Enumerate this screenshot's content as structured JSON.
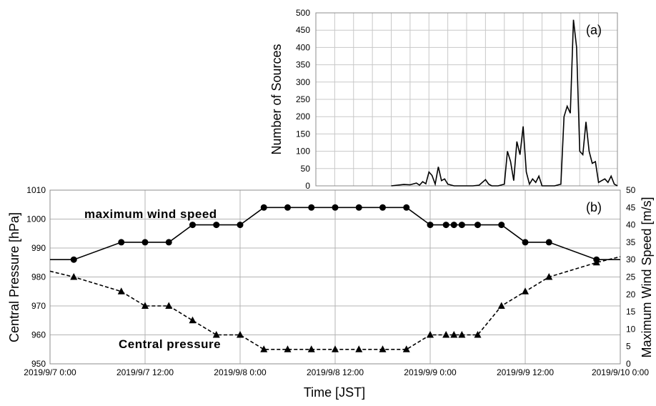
{
  "chart_data": [
    {
      "type": "line",
      "panel_label": "(a)",
      "ylabel": "Number of Sources",
      "ylim": [
        0,
        500
      ],
      "yticks": [
        "0",
        "50",
        "100",
        "150",
        "200",
        "250",
        "300",
        "350",
        "400",
        "450",
        "500"
      ],
      "x_range": [
        "2019/9/7 12:00",
        "2019/9/9 12:00"
      ],
      "grid": true,
      "series": [
        {
          "values": [
            [
              "2019/9/8 0:00",
              0
            ],
            [
              "2019/9/8 1:00",
              2
            ],
            [
              "2019/9/8 2:00",
              4
            ],
            [
              "2019/9/8 3:00",
              3
            ],
            [
              "2019/9/8 4:00",
              8
            ],
            [
              "2019/9/8 4:30",
              2
            ],
            [
              "2019/9/8 5:00",
              12
            ],
            [
              "2019/9/8 5:30",
              6
            ],
            [
              "2019/9/8 6:00",
              40
            ],
            [
              "2019/9/8 6:30",
              30
            ],
            [
              "2019/9/8 7:00",
              5
            ],
            [
              "2019/9/8 7:30",
              55
            ],
            [
              "2019/9/8 8:00",
              15
            ],
            [
              "2019/9/8 8:30",
              20
            ],
            [
              "2019/9/8 9:00",
              5
            ],
            [
              "2019/9/8 10:00",
              0
            ],
            [
              "2019/9/8 11:00",
              0
            ],
            [
              "2019/9/8 12:00",
              0
            ],
            [
              "2019/9/8 13:00",
              0
            ],
            [
              "2019/9/8 14:00",
              2
            ],
            [
              "2019/9/8 15:00",
              18
            ],
            [
              "2019/9/8 15:30",
              5
            ],
            [
              "2019/9/8 16:00",
              0
            ],
            [
              "2019/9/8 17:00",
              0
            ],
            [
              "2019/9/8 18:00",
              5
            ],
            [
              "2019/9/8 18:30",
              100
            ],
            [
              "2019/9/8 19:00",
              70
            ],
            [
              "2019/9/8 19:30",
              15
            ],
            [
              "2019/9/8 20:00",
              128
            ],
            [
              "2019/9/8 20:30",
              90
            ],
            [
              "2019/9/8 21:00",
              172
            ],
            [
              "2019/9/8 21:30",
              40
            ],
            [
              "2019/9/8 22:00",
              5
            ],
            [
              "2019/9/8 22:30",
              20
            ],
            [
              "2019/9/8 23:00",
              10
            ],
            [
              "2019/9/8 23:30",
              28
            ],
            [
              "2019/9/9 0:00",
              0
            ],
            [
              "2019/9/9 1:00",
              0
            ],
            [
              "2019/9/9 2:00",
              0
            ],
            [
              "2019/9/9 3:00",
              5
            ],
            [
              "2019/9/9 3:30",
              200
            ],
            [
              "2019/9/9 4:00",
              230
            ],
            [
              "2019/9/9 4:30",
              210
            ],
            [
              "2019/9/9 5:00",
              480
            ],
            [
              "2019/9/9 5:30",
              400
            ],
            [
              "2019/9/9 6:00",
              100
            ],
            [
              "2019/9/9 6:30",
              90
            ],
            [
              "2019/9/9 7:00",
              185
            ],
            [
              "2019/9/9 7:30",
              100
            ],
            [
              "2019/9/9 8:00",
              65
            ],
            [
              "2019/9/9 8:30",
              70
            ],
            [
              "2019/9/9 9:00",
              10
            ],
            [
              "2019/9/9 9:30",
              15
            ],
            [
              "2019/9/9 10:00",
              20
            ],
            [
              "2019/9/9 10:30",
              10
            ],
            [
              "2019/9/9 11:00",
              28
            ],
            [
              "2019/9/9 11:30",
              5
            ],
            [
              "2019/9/9 12:00",
              0
            ]
          ]
        }
      ]
    },
    {
      "type": "line",
      "panel_label": "(b)",
      "xlabel": "Time [JST]",
      "ylabel_left": "Central Pressure [hPa]",
      "ylabel_right": "Maximum Wind Speed [m/s]",
      "ylim_left": [
        950,
        1010
      ],
      "ylim_right": [
        0,
        50
      ],
      "yticks_left": [
        "950",
        "960",
        "970",
        "980",
        "990",
        "1000",
        "1010"
      ],
      "yticks_right": [
        "0",
        "5",
        "10",
        "15",
        "20",
        "25",
        "30",
        "35",
        "40",
        "45",
        "50"
      ],
      "x_range": [
        "2019/9/7 0:00",
        "2019/9/10 0:00"
      ],
      "xticks": [
        "2019/9/7 0:00",
        "2019/9/7 12:00",
        "2019/9/8 0:00",
        "2019/9/8 12:00",
        "2019/9/9 0:00",
        "2019/9/9 12:00",
        "2019/9/10 0:00"
      ],
      "grid": true,
      "annotations": [
        "maximum wind speed",
        "Central pressure"
      ],
      "series": [
        {
          "name": "maximum wind speed",
          "axis": "right",
          "values": [
            [
              "2019/9/6 21:00",
              30
            ],
            [
              "2019/9/7 3:00",
              30
            ],
            [
              "2019/9/7 9:00",
              35
            ],
            [
              "2019/9/7 12:00",
              35
            ],
            [
              "2019/9/7 15:00",
              35
            ],
            [
              "2019/9/7 18:00",
              40
            ],
            [
              "2019/9/7 21:00",
              40
            ],
            [
              "2019/9/8 0:00",
              40
            ],
            [
              "2019/9/8 3:00",
              45
            ],
            [
              "2019/9/8 6:00",
              45
            ],
            [
              "2019/9/8 9:00",
              45
            ],
            [
              "2019/9/8 12:00",
              45
            ],
            [
              "2019/9/8 15:00",
              45
            ],
            [
              "2019/9/8 18:00",
              45
            ],
            [
              "2019/9/8 21:00",
              45
            ],
            [
              "2019/9/9 0:00",
              40
            ],
            [
              "2019/9/9 2:00",
              40
            ],
            [
              "2019/9/9 3:00",
              40
            ],
            [
              "2019/9/9 4:00",
              40
            ],
            [
              "2019/9/9 6:00",
              40
            ],
            [
              "2019/9/9 9:00",
              40
            ],
            [
              "2019/9/9 12:00",
              35
            ],
            [
              "2019/9/9 15:00",
              35
            ],
            [
              "2019/9/9 21:00",
              30
            ],
            [
              "2019/9/10 0:00",
              30
            ]
          ]
        },
        {
          "name": "Central pressure",
          "axis": "left",
          "values": [
            [
              "2019/9/6 21:00",
              982
            ],
            [
              "2019/9/7 3:00",
              980
            ],
            [
              "2019/9/7 9:00",
              975
            ],
            [
              "2019/9/7 12:00",
              970
            ],
            [
              "2019/9/7 15:00",
              970
            ],
            [
              "2019/9/7 18:00",
              965
            ],
            [
              "2019/9/7 21:00",
              960
            ],
            [
              "2019/9/8 0:00",
              960
            ],
            [
              "2019/9/8 3:00",
              955
            ],
            [
              "2019/9/8 6:00",
              955
            ],
            [
              "2019/9/8 9:00",
              955
            ],
            [
              "2019/9/8 12:00",
              955
            ],
            [
              "2019/9/8 15:00",
              955
            ],
            [
              "2019/9/8 18:00",
              955
            ],
            [
              "2019/9/8 21:00",
              955
            ],
            [
              "2019/9/9 0:00",
              960
            ],
            [
              "2019/9/9 2:00",
              960
            ],
            [
              "2019/9/9 3:00",
              960
            ],
            [
              "2019/9/9 4:00",
              960
            ],
            [
              "2019/9/9 6:00",
              960
            ],
            [
              "2019/9/9 9:00",
              970
            ],
            [
              "2019/9/9 12:00",
              975
            ],
            [
              "2019/9/9 15:00",
              980
            ],
            [
              "2019/9/9 21:00",
              985
            ],
            [
              "2019/9/10 0:00",
              987
            ]
          ]
        }
      ]
    }
  ]
}
